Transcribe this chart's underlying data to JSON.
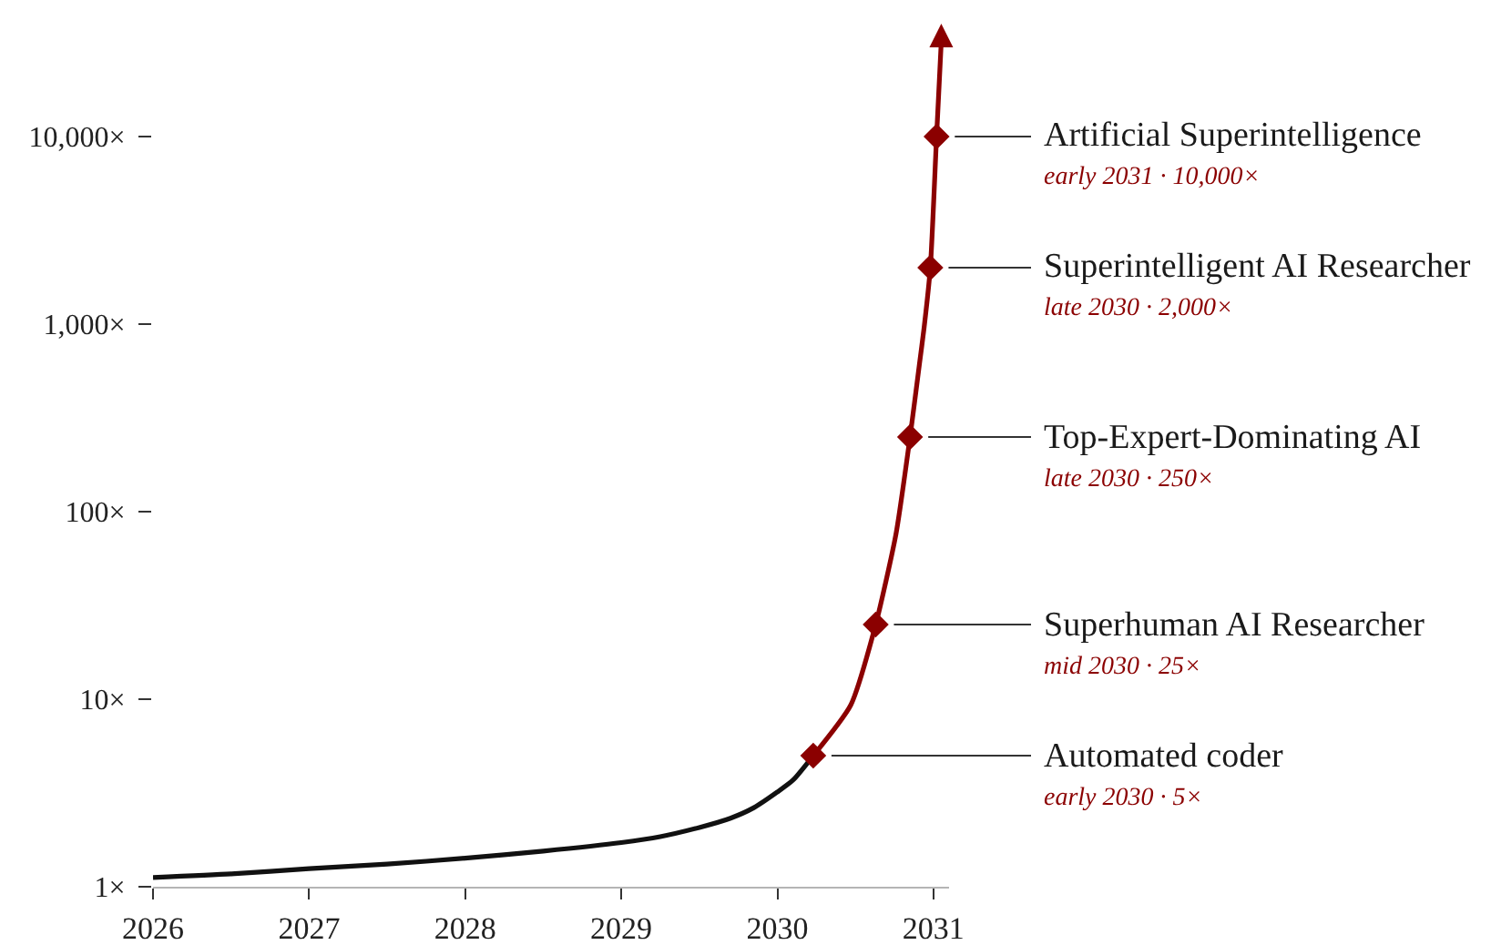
{
  "chart_data": {
    "type": "line",
    "series": [
      {
        "color": "#111111",
        "x": [
          2026,
          2026.5,
          2027,
          2027.5,
          2028,
          2028.5,
          2029,
          2029.25,
          2029.5,
          2029.7,
          2029.85,
          2030,
          2030.1,
          2030.23
        ],
        "values": [
          1.12,
          1.17,
          1.25,
          1.32,
          1.42,
          1.55,
          1.72,
          1.85,
          2.07,
          2.32,
          2.64,
          3.2,
          3.7,
          5
        ]
      },
      {
        "color": "#8b0000",
        "x": [
          2030.23,
          2030.47,
          2030.63,
          2030.76,
          2030.85,
          2030.91,
          2030.94,
          2030.98,
          2031.02,
          2031.05
        ],
        "values": [
          5,
          9.3,
          25,
          76,
          250,
          610,
          955,
          2000,
          10000,
          32000
        ]
      },
      {
        "type": "scatter",
        "color": "#8b0000",
        "marker": "diamond",
        "x": [
          2030.23,
          2030.63,
          2030.85,
          2030.98,
          2031.02
        ],
        "values": [
          5,
          25,
          250,
          2000,
          10000
        ]
      }
    ],
    "xlim": [
      2026,
      2031.1
    ],
    "xticks": [
      2026,
      2027,
      2028,
      2029,
      2030,
      2031
    ],
    "ylim": [
      1,
      50000
    ],
    "yticks": [
      {
        "value": 1,
        "label": "1×"
      },
      {
        "value": 10,
        "label": "10×"
      },
      {
        "value": 100,
        "label": "100×"
      },
      {
        "value": 1000,
        "label": "1,000×"
      },
      {
        "value": 10000,
        "label": "10,000×"
      }
    ],
    "log": "y",
    "grid": false,
    "annotations": [
      {
        "text": "Automated coder",
        "x": 2030.23,
        "y": 5
      },
      "early 2030 · 5×",
      {
        "text": "Superhuman AI Researcher",
        "x": 2030.63,
        "y": 25
      },
      "mid 2030 · 25×",
      {
        "text": "Top-Expert-Dominating AI",
        "x": 2030.85,
        "y": 250
      },
      "late 2030 · 250×",
      {
        "text": "Superintelligent AI Researcher",
        "x": 2030.98,
        "y": 2000
      },
      "late 2030 · 2,000×",
      {
        "text": "Artificial Superintelligence",
        "x": 2031.02,
        "y": 10000
      },
      "early 2031 · 10,000×"
    ]
  }
}
